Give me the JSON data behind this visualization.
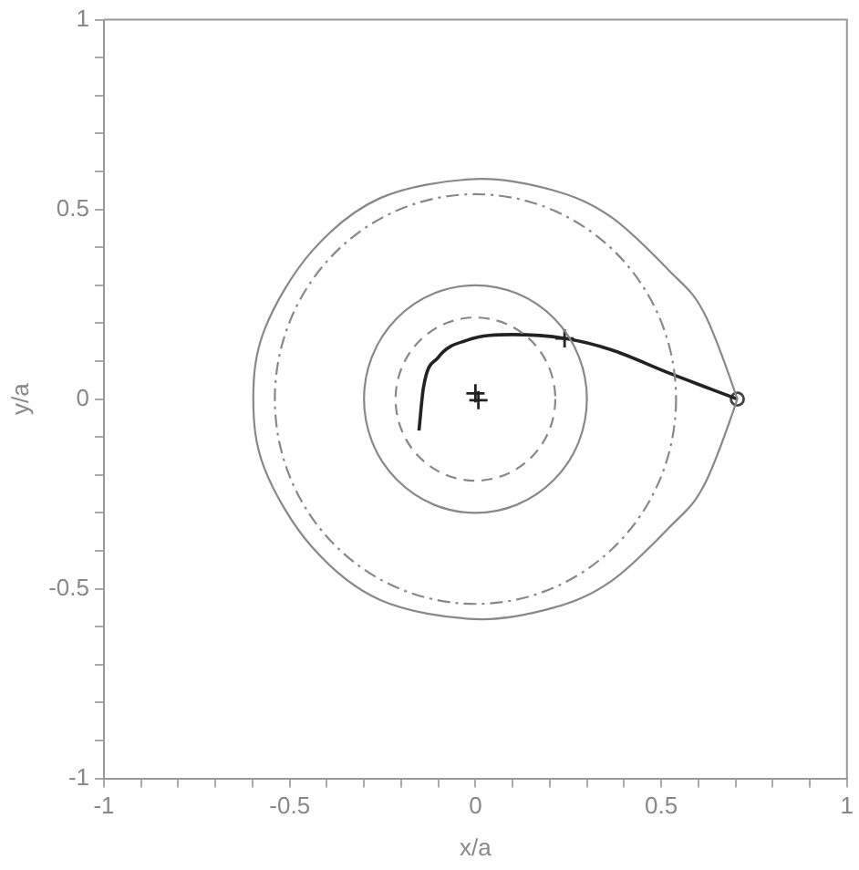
{
  "chart_data": {
    "type": "line",
    "xlabel": "x/a",
    "ylabel": "y/a",
    "xlim": [
      -1,
      1
    ],
    "ylim": [
      -1,
      1
    ],
    "xticks": [
      -1,
      {
        "value": -0.9,
        "label": null
      },
      {
        "value": -0.8,
        "label": null
      },
      {
        "value": -0.7,
        "label": null
      },
      {
        "value": -0.6,
        "label": null
      },
      -0.5,
      {
        "value": -0.4,
        "label": null
      },
      {
        "value": -0.3,
        "label": null
      },
      {
        "value": -0.2,
        "label": null
      },
      {
        "value": -0.1,
        "label": null
      },
      0,
      {
        "value": 0.1,
        "label": null
      },
      {
        "value": 0.2,
        "label": null
      },
      {
        "value": 0.3,
        "label": null
      },
      {
        "value": 0.4,
        "label": null
      },
      0.5,
      {
        "value": 0.6,
        "label": null
      },
      {
        "value": 0.7,
        "label": null
      },
      {
        "value": 0.8,
        "label": null
      },
      {
        "value": 0.9,
        "label": null
      },
      1
    ],
    "yticks": [
      -1,
      {
        "value": -0.9,
        "label": null
      },
      {
        "value": -0.8,
        "label": null
      },
      {
        "value": -0.7,
        "label": null
      },
      {
        "value": -0.6,
        "label": null
      },
      -0.5,
      {
        "value": -0.4,
        "label": null
      },
      {
        "value": -0.3,
        "label": null
      },
      {
        "value": -0.2,
        "label": null
      },
      {
        "value": -0.1,
        "label": null
      },
      0,
      {
        "value": 0.1,
        "label": null
      },
      {
        "value": 0.2,
        "label": null
      },
      {
        "value": 0.3,
        "label": null
      },
      {
        "value": 0.4,
        "label": null
      },
      0.5,
      {
        "value": 0.6,
        "label": null
      },
      {
        "value": 0.7,
        "label": null
      },
      {
        "value": 0.8,
        "label": null
      },
      {
        "value": 0.9,
        "label": null
      },
      1
    ],
    "grid": false,
    "legend": false,
    "series": [
      {
        "color": "#222222",
        "marker": "none",
        "line_style": "solid",
        "x": [
          -0.152,
          -0.14,
          -0.1,
          -0.023,
          0.1,
          0.24,
          0.365,
          0.52,
          0.705
        ],
        "values": [
          -0.083,
          0.03,
          0.11,
          0.155,
          0.17,
          0.16,
          0.13,
          0.069,
          0
        ]
      },
      {
        "type": "scatter",
        "color": "#222222",
        "marker": "cross",
        "x": [
          0,
          0.008,
          0.24
        ],
        "values": [
          0.015,
          -0.003,
          0.16
        ]
      },
      {
        "type": "scatter",
        "color": "#444444",
        "marker": "circle",
        "x": [
          0.705
        ],
        "values": [
          0
        ]
      }
    ]
  }
}
